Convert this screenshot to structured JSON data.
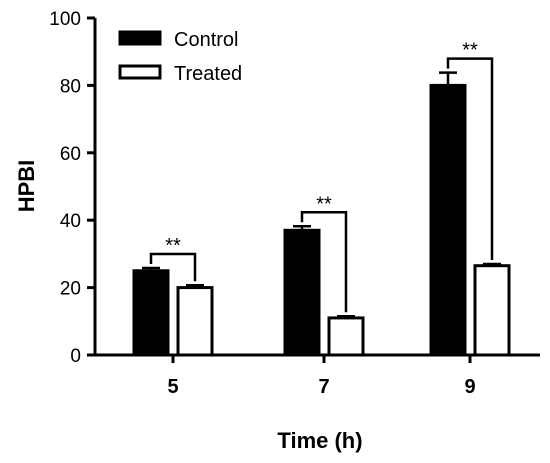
{
  "colors": {
    "control": "#000000",
    "treated": "#ffffff",
    "axis": "#000000"
  },
  "chart_data": {
    "type": "bar",
    "xlabel": "Time (h)",
    "ylabel": "HPBI",
    "ylim": [
      0,
      100
    ],
    "yticks": [
      "0",
      "20",
      "40",
      "60",
      "80",
      "100"
    ],
    "categories": [
      "5",
      "7",
      "9"
    ],
    "legend_placement": "top-left",
    "grid": false,
    "series": [
      {
        "name": "Control",
        "values": [
          25,
          37,
          80
        ],
        "errors": [
          0.8,
          1.2,
          3.8
        ]
      },
      {
        "name": "Treated",
        "values": [
          20,
          11,
          26.5
        ],
        "errors": [
          0.7,
          0.5,
          0.5
        ]
      }
    ],
    "annotations": [
      {
        "category": "5",
        "label": "**"
      },
      {
        "category": "7",
        "label": "**"
      },
      {
        "category": "9",
        "label": "**"
      }
    ]
  }
}
